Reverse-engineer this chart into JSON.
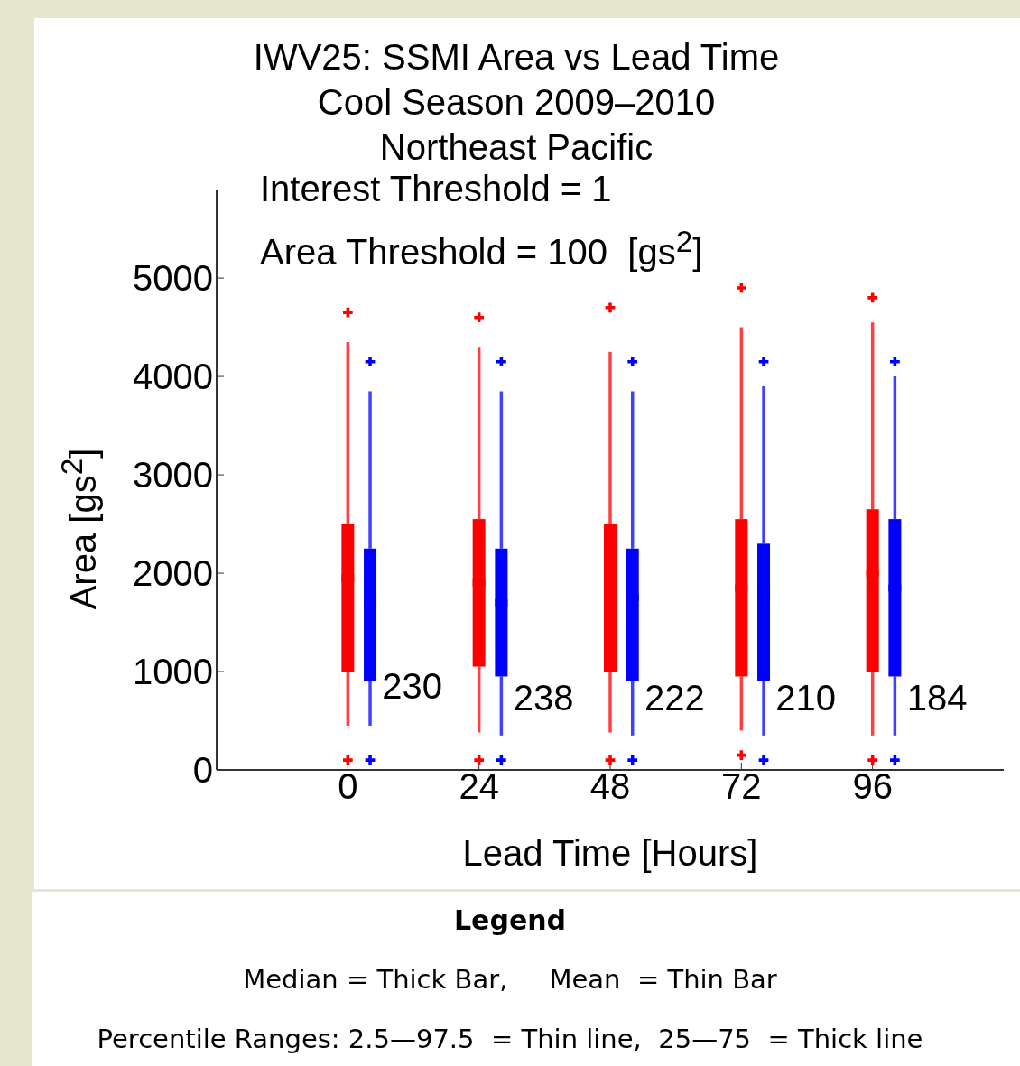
{
  "chart_data": {
    "type": "box",
    "title": "IWV25: SSMI Area vs Lead Time",
    "subtitle": "Cool Season 2009–2010\nNortheast Pacific",
    "xlabel": "Lead Time [Hours]",
    "ylabel": "Area [gs$^{2}$]",
    "categories": [
      "0",
      "24",
      "48",
      "72",
      "96"
    ],
    "series": [
      {
        "color": "#ff0000",
        "boxes": [
          {
            "low": 450,
            "q1": 1000,
            "median": 1950,
            "q3": 2500,
            "high": 4350,
            "outliers": [
              4650,
              100
            ]
          },
          {
            "low": 380,
            "q1": 1050,
            "median": 1900,
            "q3": 2550,
            "high": 4300,
            "outliers": [
              4600,
              100
            ]
          },
          {
            "low": 380,
            "q1": 1000,
            "median": 1850,
            "q3": 2500,
            "high": 4250,
            "outliers": [
              4700,
              100
            ]
          },
          {
            "low": 400,
            "q1": 950,
            "median": 1850,
            "q3": 2550,
            "high": 4500,
            "outliers": [
              4900,
              150
            ]
          },
          {
            "low": 350,
            "q1": 1000,
            "median": 2000,
            "q3": 2650,
            "high": 4550,
            "outliers": [
              4800,
              100
            ]
          }
        ]
      },
      {
        "color": "#0000ff",
        "boxes": [
          {
            "low": 450,
            "q1": 900,
            "median": 1700,
            "q3": 2250,
            "high": 3850,
            "outliers": [
              4150,
              100
            ]
          },
          {
            "low": 350,
            "q1": 950,
            "median": 1700,
            "q3": 2250,
            "high": 3850,
            "outliers": [
              4150,
              100
            ]
          },
          {
            "low": 350,
            "q1": 900,
            "median": 1750,
            "q3": 2250,
            "high": 3850,
            "outliers": [
              4150,
              100
            ]
          },
          {
            "low": 350,
            "q1": 900,
            "median": 1800,
            "q3": 2300,
            "high": 3900,
            "outliers": [
              4150,
              100
            ]
          },
          {
            "low": 350,
            "q1": 950,
            "median": 1850,
            "q3": 2550,
            "high": 4000,
            "outliers": [
              4150,
              100
            ]
          }
        ]
      }
    ],
    "ylim": [
      0,
      5900
    ],
    "yticks": [
      0,
      1000,
      2000,
      3000,
      4000,
      5000
    ],
    "annotations": [
      "230",
      "238",
      "222",
      "210",
      "184",
      "Interest Threshold = 1",
      "Area Threshold = 100  [gs$^{2}$]",
      "Legend",
      "Median = Thick Bar,     Mean  = Thin Bar",
      "Percentile Ranges: 2.5—97.5  = Thin line,  25—75  = Thick line"
    ]
  }
}
